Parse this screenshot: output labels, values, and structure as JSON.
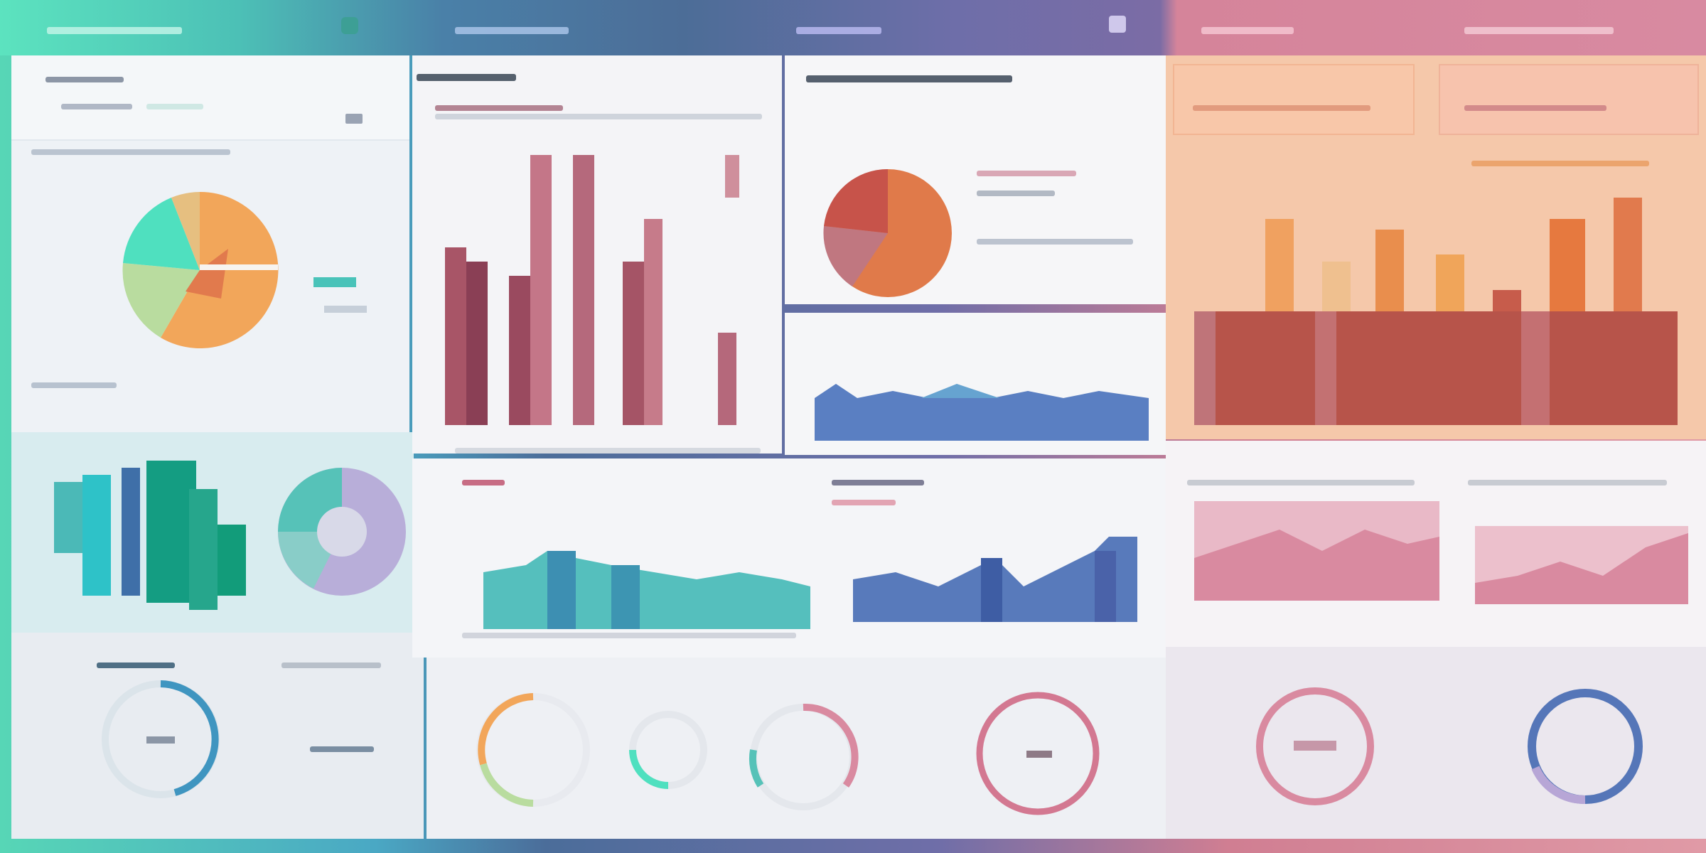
{
  "colors": {
    "teal": "#4fd1b4",
    "cyan": "#3fbccc",
    "green": "#13a07c",
    "orange": "#f0a55a",
    "rose": "#c3707f",
    "maroon": "#8c3d52",
    "blue": "#5576b8",
    "lavender": "#b7a6d6",
    "peach": "#f6c7a6",
    "brick": "#b4473f"
  },
  "icons": {
    "menu": "hamburger-menu-icon",
    "settings": "gear-icon",
    "expand": "expand-icon"
  }
}
